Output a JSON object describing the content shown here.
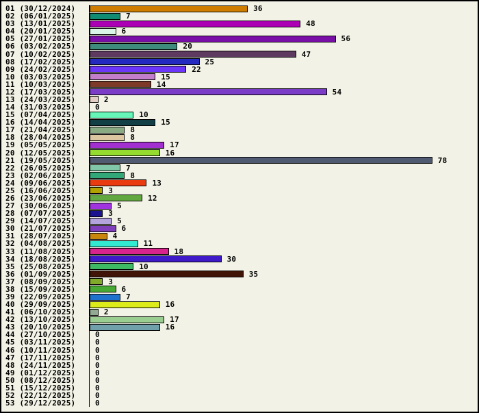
{
  "window": {
    "background_color": "#F2F2E6",
    "border_color": "#000000",
    "text_color": "#000000"
  },
  "chart_data": {
    "type": "bar",
    "orientation": "horizontal",
    "title": "",
    "xlabel": "",
    "ylabel": "",
    "grid": false,
    "legend": false,
    "xlim": [
      0,
      88
    ],
    "categories": [
      "01 (30/12/2024)",
      "02 (06/01/2025)",
      "03 (13/01/2025)",
      "04 (20/01/2025)",
      "05 (27/01/2025)",
      "06 (03/02/2025)",
      "07 (10/02/2025)",
      "08 (17/02/2025)",
      "09 (24/02/2025)",
      "10 (03/03/2025)",
      "11 (10/03/2025)",
      "12 (17/03/2025)",
      "13 (24/03/2025)",
      "14 (31/03/2025)",
      "15 (07/04/2025)",
      "16 (14/04/2025)",
      "17 (21/04/2025)",
      "18 (28/04/2025)",
      "19 (05/05/2025)",
      "20 (12/05/2025)",
      "21 (19/05/2025)",
      "22 (26/05/2025)",
      "23 (02/06/2025)",
      "24 (09/06/2025)",
      "25 (16/06/2025)",
      "26 (23/06/2025)",
      "27 (30/06/2025)",
      "28 (07/07/2025)",
      "29 (14/07/2025)",
      "30 (21/07/2025)",
      "31 (28/07/2025)",
      "32 (04/08/2025)",
      "33 (11/08/2025)",
      "34 (18/08/2025)",
      "35 (25/08/2025)",
      "36 (01/09/2025)",
      "37 (08/09/2025)",
      "38 (15/09/2025)",
      "39 (22/09/2025)",
      "40 (29/09/2025)",
      "41 (06/10/2025)",
      "42 (13/10/2025)",
      "43 (20/10/2025)",
      "44 (27/10/2025)",
      "45 (03/11/2025)",
      "46 (10/11/2025)",
      "47 (17/11/2025)",
      "48 (24/11/2025)",
      "49 (01/12/2025)",
      "50 (08/12/2025)",
      "51 (15/12/2025)",
      "52 (22/12/2025)",
      "53 (29/12/2025)"
    ],
    "values": [
      36,
      7,
      48,
      6,
      56,
      20,
      47,
      25,
      22,
      15,
      14,
      54,
      2,
      0,
      10,
      15,
      8,
      8,
      17,
      16,
      78,
      7,
      8,
      13,
      3,
      12,
      5,
      3,
      5,
      6,
      4,
      11,
      18,
      30,
      10,
      35,
      3,
      6,
      7,
      16,
      2,
      17,
      16,
      0,
      0,
      0,
      0,
      0,
      0,
      0,
      0,
      0,
      0
    ],
    "bar_colors": [
      "#CE7D00",
      "#108C72",
      "#AC00B4",
      "#D9F6E7",
      "#7A0FA8",
      "#3E8C7C",
      "#5E3A60",
      "#2429C0",
      "#6C35FA",
      "#C27ECA",
      "#7E3A28",
      "#7B3DC8",
      "#E2CEC4",
      null,
      "#66F6B8",
      "#123F46",
      "#8AAA84",
      "#DCC6A2",
      "#A22FD0",
      "#96DC30",
      "#505A70",
      "#80C8A8",
      "#32A878",
      "#EA3A10",
      "#B2A200",
      "#62A840",
      "#A032E0",
      "#1A1490",
      "#B4A4DE",
      "#8040BC",
      "#C8860D",
      "#32EAD0",
      "#D8248C",
      "#3E1AC8",
      "#3EBA64",
      "#401508",
      "#82AA2A",
      "#48AA34",
      "#1E72CC",
      "#DCEC1A",
      "#92AA92",
      "#9ACE90",
      "#70A0AA",
      null,
      null,
      null,
      null,
      null,
      null,
      null,
      null,
      null,
      null
    ]
  }
}
